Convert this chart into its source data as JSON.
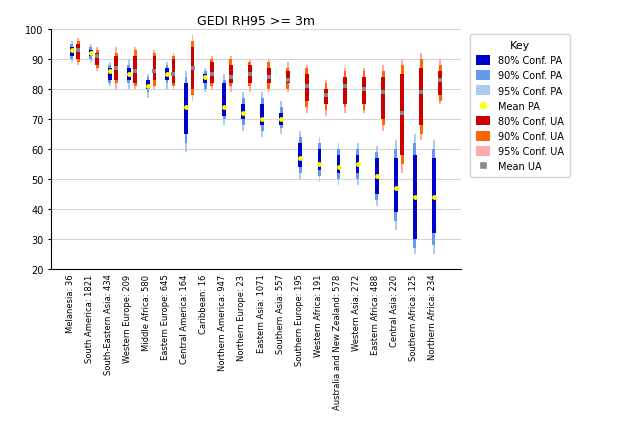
{
  "title": "GEDI RH95 >= 3m",
  "ylim": [
    20,
    100
  ],
  "yticks": [
    20,
    30,
    40,
    50,
    60,
    70,
    80,
    90,
    100
  ],
  "categories": [
    "Melanesia: 36",
    "South America: 1821",
    "South-Eastern Asia: 434",
    "Western Europe: 209",
    "Middle Africa: 580",
    "Eastern Europe: 645",
    "Central America: 164",
    "Caribbean: 16",
    "Northern America: 947",
    "Northern Europe: 23",
    "Eastern Asia: 1071",
    "Southern Asia: 557",
    "Southern Europe: 195",
    "Western Africa: 191",
    "Australia and New Zealand: 578",
    "Western Asia: 272",
    "Eastern Africa: 488",
    "Central Asia: 220",
    "Southern Africa: 125",
    "Northern Africa: 234"
  ],
  "pa_80_low": [
    91,
    91,
    83,
    83,
    80,
    83,
    65,
    82,
    71,
    70,
    68,
    68,
    54,
    53,
    52,
    52,
    45,
    39,
    30,
    32
  ],
  "pa_80_high": [
    94,
    93,
    87,
    87,
    83,
    87,
    82,
    85,
    82,
    75,
    75,
    72,
    62,
    60,
    58,
    58,
    57,
    57,
    58,
    57
  ],
  "pa_90_low": [
    90,
    90,
    82,
    82,
    79,
    82,
    62,
    80,
    70,
    68,
    66,
    67,
    52,
    51,
    50,
    50,
    43,
    36,
    27,
    28
  ],
  "pa_90_high": [
    95,
    94,
    88,
    88,
    84,
    88,
    84,
    86,
    83,
    77,
    77,
    74,
    64,
    62,
    60,
    60,
    59,
    60,
    62,
    60
  ],
  "pa_95_low": [
    89,
    89,
    81,
    80,
    77,
    80,
    59,
    79,
    68,
    66,
    64,
    65,
    50,
    49,
    48,
    48,
    41,
    33,
    25,
    25
  ],
  "pa_95_high": [
    96,
    95,
    89,
    90,
    85,
    89,
    86,
    87,
    85,
    79,
    79,
    76,
    66,
    64,
    62,
    62,
    61,
    63,
    65,
    63
  ],
  "pa_mean": [
    93,
    92,
    86,
    85,
    81,
    85,
    74,
    84,
    74,
    72,
    70,
    70,
    57,
    55,
    54,
    55,
    51,
    47,
    44,
    44
  ],
  "ua_80_low": [
    90,
    88,
    83,
    82,
    83,
    82,
    80,
    82,
    82,
    82,
    82,
    82,
    76,
    75,
    75,
    75,
    70,
    58,
    68,
    78
  ],
  "ua_80_high": [
    95,
    92,
    91,
    91,
    91,
    90,
    94,
    89,
    88,
    88,
    87,
    86,
    85,
    80,
    84,
    84,
    84,
    85,
    87,
    86
  ],
  "ua_90_low": [
    89,
    87,
    82,
    81,
    81,
    81,
    78,
    81,
    81,
    81,
    80,
    80,
    74,
    73,
    74,
    73,
    68,
    55,
    65,
    76
  ],
  "ua_90_high": [
    96,
    93,
    92,
    93,
    92,
    91,
    96,
    90,
    90,
    89,
    89,
    87,
    87,
    82,
    86,
    86,
    86,
    88,
    90,
    88
  ],
  "ua_95_low": [
    88,
    86,
    80,
    80,
    80,
    80,
    76,
    80,
    79,
    79,
    79,
    79,
    72,
    71,
    72,
    72,
    66,
    52,
    63,
    75
  ],
  "ua_95_high": [
    97,
    94,
    94,
    94,
    93,
    92,
    98,
    91,
    91,
    90,
    90,
    89,
    88,
    83,
    87,
    87,
    88,
    90,
    92,
    90
  ],
  "ua_mean": [
    93,
    91,
    87,
    86,
    86,
    85,
    87,
    85,
    84,
    85,
    84,
    83,
    81,
    78,
    81,
    80,
    79,
    72,
    79,
    83
  ],
  "color_pa_80": "#0000cc",
  "color_pa_90": "#6699ee",
  "color_pa_95": "#aaccee",
  "color_pa_mean": "#ffff00",
  "color_ua_80": "#cc0000",
  "color_ua_90": "#ff6600",
  "color_ua_95": "#ffaaaa",
  "color_ua_mean": "#888888"
}
